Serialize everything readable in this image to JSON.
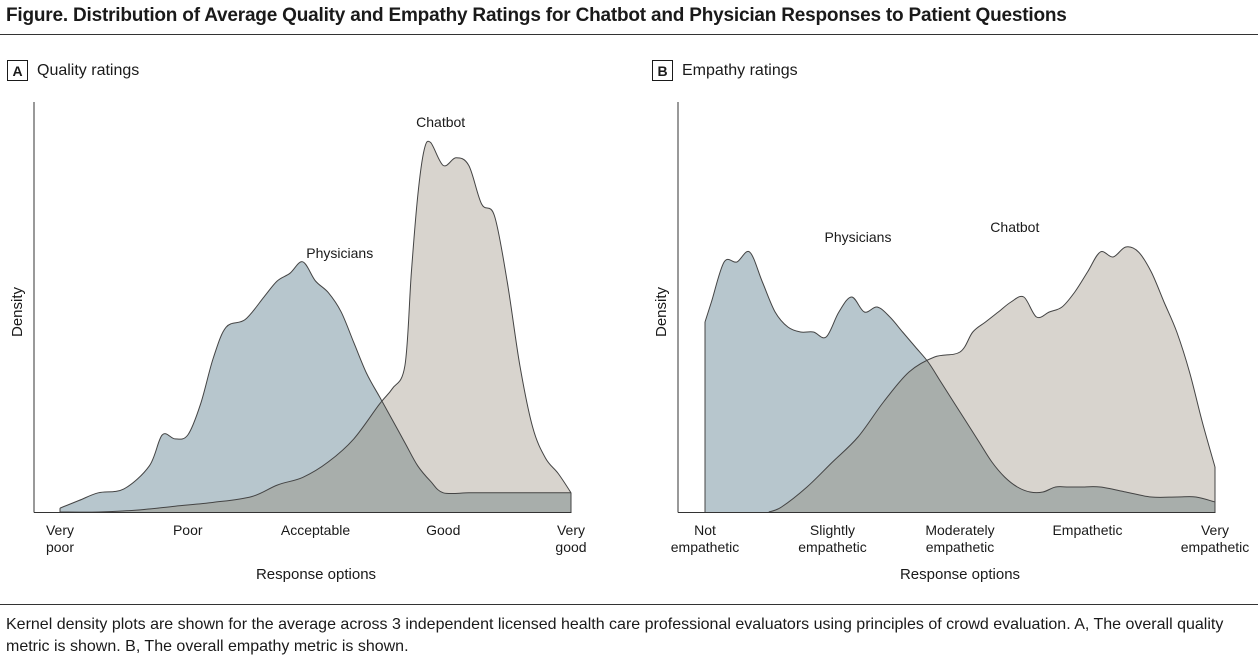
{
  "figure": {
    "title": "Figure. Distribution of Average Quality and Empathy Ratings for Chatbot and Physician Responses to Patient Questions",
    "caption": "Kernel density plots are shown for the average across 3 independent licensed health care professional evaluators using principles of crowd evaluation. A, The overall quality metric is shown. B, The overall empathy metric is shown."
  },
  "colors": {
    "physicians_fill": "#b7c6cd",
    "chatbot_fill": "#d8d4ce",
    "overlap_fill": "#a8aeab",
    "outline": "#444444"
  },
  "chart_data": [
    {
      "type": "area",
      "panel_letter": "A",
      "panel_title": "Quality ratings",
      "xlabel": "Response options",
      "ylabel": "Density",
      "ticks": [
        {
          "x": 1,
          "lines": [
            "Very",
            "poor"
          ]
        },
        {
          "x": 2,
          "lines": [
            "Poor"
          ]
        },
        {
          "x": 3,
          "lines": [
            "Acceptable"
          ]
        },
        {
          "x": 4,
          "lines": [
            "Good"
          ]
        },
        {
          "x": 5,
          "lines": [
            "Very",
            "good"
          ]
        }
      ],
      "xlim": [
        0.8,
        5.0
      ],
      "ylim": [
        0,
        1.0
      ],
      "series": [
        {
          "name": "Physicians",
          "label": "Physicians",
          "label_at": [
            3.19,
            0.66
          ],
          "points": [
            [
              1.0,
              0.01
            ],
            [
              1.15,
              0.03
            ],
            [
              1.3,
              0.05
            ],
            [
              1.5,
              0.06
            ],
            [
              1.7,
              0.12
            ],
            [
              1.8,
              0.2
            ],
            [
              1.9,
              0.19
            ],
            [
              2.0,
              0.2
            ],
            [
              2.1,
              0.28
            ],
            [
              2.2,
              0.4
            ],
            [
              2.3,
              0.48
            ],
            [
              2.45,
              0.5
            ],
            [
              2.6,
              0.56
            ],
            [
              2.7,
              0.6
            ],
            [
              2.8,
              0.62
            ],
            [
              2.9,
              0.65
            ],
            [
              3.0,
              0.6
            ],
            [
              3.1,
              0.57
            ],
            [
              3.2,
              0.52
            ],
            [
              3.3,
              0.44
            ],
            [
              3.4,
              0.36
            ],
            [
              3.5,
              0.3
            ],
            [
              3.6,
              0.24
            ],
            [
              3.7,
              0.18
            ],
            [
              3.8,
              0.12
            ],
            [
              3.9,
              0.08
            ],
            [
              4.0,
              0.05
            ],
            [
              4.2,
              0.05
            ],
            [
              4.4,
              0.05
            ],
            [
              4.6,
              0.05
            ],
            [
              5.0,
              0.05
            ]
          ]
        },
        {
          "name": "Chatbot",
          "label": "Chatbot",
          "label_at": [
            3.98,
            1.0
          ],
          "points": [
            [
              1.0,
              0.0
            ],
            [
              1.3,
              0.0
            ],
            [
              1.6,
              0.005
            ],
            [
              1.9,
              0.015
            ],
            [
              2.2,
              0.025
            ],
            [
              2.5,
              0.04
            ],
            [
              2.7,
              0.07
            ],
            [
              2.9,
              0.09
            ],
            [
              3.1,
              0.13
            ],
            [
              3.3,
              0.19
            ],
            [
              3.5,
              0.28
            ],
            [
              3.6,
              0.32
            ],
            [
              3.7,
              0.38
            ],
            [
              3.75,
              0.62
            ],
            [
              3.8,
              0.82
            ],
            [
              3.85,
              0.94
            ],
            [
              3.9,
              0.96
            ],
            [
              4.0,
              0.9
            ],
            [
              4.1,
              0.92
            ],
            [
              4.2,
              0.9
            ],
            [
              4.3,
              0.8
            ],
            [
              4.4,
              0.77
            ],
            [
              4.5,
              0.6
            ],
            [
              4.6,
              0.38
            ],
            [
              4.7,
              0.22
            ],
            [
              4.8,
              0.14
            ],
            [
              4.9,
              0.1
            ],
            [
              5.0,
              0.05
            ]
          ]
        }
      ]
    },
    {
      "type": "area",
      "panel_letter": "B",
      "panel_title": "Empathy ratings",
      "xlabel": "Response options",
      "ylabel": "Density",
      "ticks": [
        {
          "x": 1,
          "lines": [
            "Not",
            "empathetic"
          ]
        },
        {
          "x": 2,
          "lines": [
            "Slightly",
            "empathetic"
          ]
        },
        {
          "x": 3,
          "lines": [
            "Moderately",
            "empathetic"
          ]
        },
        {
          "x": 4,
          "lines": [
            "Empathetic"
          ]
        },
        {
          "x": 5,
          "lines": [
            "Very",
            "empathetic"
          ]
        }
      ],
      "xlim": [
        0.95,
        5.0
      ],
      "ylim": [
        0,
        1.0
      ],
      "series": [
        {
          "name": "Physicians",
          "label": "Physicians",
          "label_at": [
            2.2,
            0.54
          ],
          "points": [
            [
              1.0,
              0.38
            ],
            [
              1.05,
              0.42
            ],
            [
              1.15,
              0.5
            ],
            [
              1.25,
              0.5
            ],
            [
              1.35,
              0.52
            ],
            [
              1.45,
              0.46
            ],
            [
              1.55,
              0.4
            ],
            [
              1.65,
              0.37
            ],
            [
              1.75,
              0.36
            ],
            [
              1.85,
              0.36
            ],
            [
              1.95,
              0.35
            ],
            [
              2.05,
              0.4
            ],
            [
              2.15,
              0.43
            ],
            [
              2.25,
              0.4
            ],
            [
              2.35,
              0.41
            ],
            [
              2.45,
              0.39
            ],
            [
              2.55,
              0.36
            ],
            [
              2.65,
              0.33
            ],
            [
              2.75,
              0.3
            ],
            [
              2.85,
              0.26
            ],
            [
              2.95,
              0.22
            ],
            [
              3.05,
              0.18
            ],
            [
              3.15,
              0.14
            ],
            [
              3.25,
              0.1
            ],
            [
              3.35,
              0.07
            ],
            [
              3.45,
              0.05
            ],
            [
              3.55,
              0.04
            ],
            [
              3.65,
              0.04
            ],
            [
              3.75,
              0.05
            ],
            [
              3.85,
              0.05
            ],
            [
              3.95,
              0.05
            ],
            [
              4.1,
              0.05
            ],
            [
              4.3,
              0.04
            ],
            [
              4.5,
              0.03
            ],
            [
              4.7,
              0.03
            ],
            [
              4.85,
              0.03
            ],
            [
              5.0,
              0.02
            ]
          ]
        },
        {
          "name": "Chatbot",
          "label": "Chatbot",
          "label_at": [
            3.43,
            0.56
          ],
          "points": [
            [
              1.5,
              0.0
            ],
            [
              1.6,
              0.01
            ],
            [
              1.8,
              0.05
            ],
            [
              2.0,
              0.1
            ],
            [
              2.2,
              0.15
            ],
            [
              2.4,
              0.22
            ],
            [
              2.6,
              0.28
            ],
            [
              2.8,
              0.31
            ],
            [
              3.0,
              0.32
            ],
            [
              3.1,
              0.36
            ],
            [
              3.2,
              0.38
            ],
            [
              3.3,
              0.4
            ],
            [
              3.4,
              0.42
            ],
            [
              3.5,
              0.43
            ],
            [
              3.6,
              0.39
            ],
            [
              3.7,
              0.4
            ],
            [
              3.8,
              0.41
            ],
            [
              3.9,
              0.44
            ],
            [
              4.0,
              0.48
            ],
            [
              4.1,
              0.52
            ],
            [
              4.2,
              0.51
            ],
            [
              4.3,
              0.53
            ],
            [
              4.4,
              0.52
            ],
            [
              4.5,
              0.48
            ],
            [
              4.6,
              0.42
            ],
            [
              4.7,
              0.36
            ],
            [
              4.8,
              0.28
            ],
            [
              4.9,
              0.18
            ],
            [
              5.0,
              0.09
            ]
          ]
        }
      ]
    }
  ]
}
